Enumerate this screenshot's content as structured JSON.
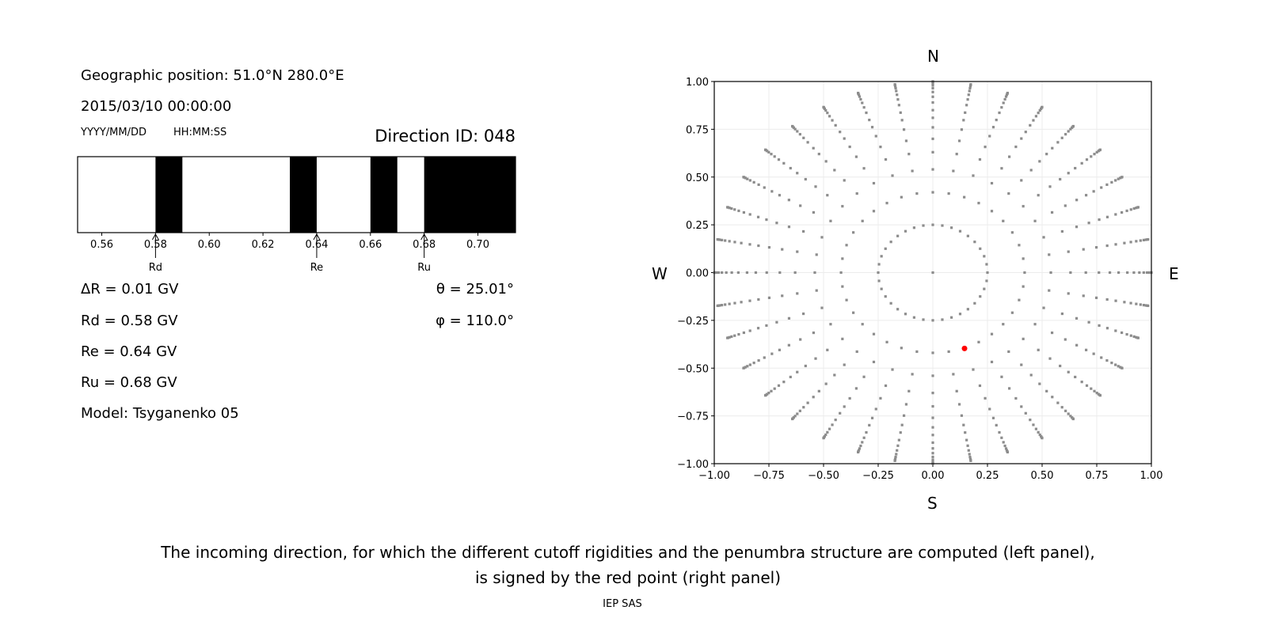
{
  "left_panel": {
    "position": "Geographic position: 51.0°N 280.0°E",
    "datetime": "2015/03/10 00:00:00",
    "date_format": "YYYY/MM/DD",
    "time_format": "HH:MM:SS",
    "direction_id": "Direction ID: 048",
    "delta_r": "ΔR = 0.01 GV",
    "rd": "Rd = 0.58 GV",
    "re": "Re = 0.64 GV",
    "ru": "Ru = 0.68 GV",
    "model": "Model: Tsyganenko 05",
    "theta": "θ = 25.01°",
    "phi": "φ = 110.0°"
  },
  "caption": {
    "line1": "The incoming direction, for which the different cutoff rigidities and the penumbra structure are computed (left panel),",
    "line2": "is signed by the red point (right panel)"
  },
  "footer": "IEP SAS",
  "compass": {
    "n": "N",
    "s": "S",
    "w": "W",
    "e": "E"
  },
  "chart_data": [
    {
      "type": "bar",
      "subtype": "penumbra",
      "xlim": [
        0.551,
        0.714
      ],
      "xticks": [
        "0.56",
        "0.58",
        "0.60",
        "0.62",
        "0.64",
        "0.66",
        "0.68",
        "0.70"
      ],
      "forbidden_intervals": [
        [
          0.58,
          0.59
        ],
        [
          0.63,
          0.64
        ],
        [
          0.66,
          0.67
        ],
        [
          0.68,
          0.714
        ]
      ],
      "colors": {
        "allowed": "#ffffff",
        "forbidden": "#000000"
      },
      "markers": [
        {
          "label": "Rd",
          "value": 0.58
        },
        {
          "label": "Re",
          "value": 0.64
        },
        {
          "label": "Ru",
          "value": 0.68
        }
      ]
    },
    {
      "type": "scatter",
      "xlim": [
        -1,
        1
      ],
      "ylim": [
        -1,
        1
      ],
      "xticks": [
        "−1.00",
        "−0.75",
        "−0.50",
        "−0.25",
        "0.00",
        "0.25",
        "0.50",
        "0.75",
        "1.00"
      ],
      "yticks": [
        "−1.00",
        "−0.75",
        "−0.50",
        "−0.25",
        "0.00",
        "0.25",
        "0.50",
        "0.75",
        "1.00"
      ],
      "grid": true,
      "directions_grid": {
        "azimuth_step_deg": 10,
        "radii": [
          0.25,
          0.42,
          0.54,
          0.63,
          0.7,
          0.76,
          0.81,
          0.85,
          0.89,
          0.92,
          0.945,
          0.965,
          0.98,
          0.99,
          0.997,
          1.0
        ],
        "center_point": true,
        "color": "#8c8c8c"
      },
      "highlight": {
        "x": 0.145,
        "y": -0.397,
        "color": "#ff0000"
      }
    }
  ]
}
